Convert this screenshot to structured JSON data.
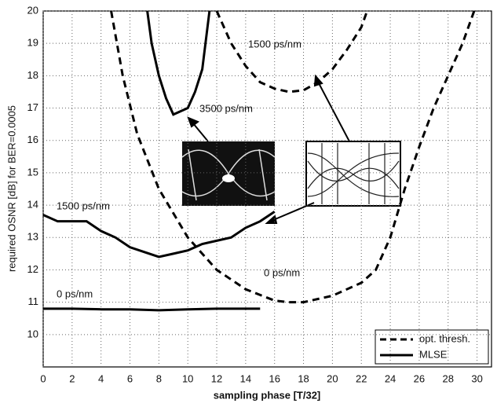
{
  "chart_data": {
    "type": "line",
    "xlabel": "sampling phase [T/32]",
    "ylabel": "required OSNR [dB] for BER=0.0005",
    "xlim": [
      0,
      31
    ],
    "ylim": [
      9,
      20
    ],
    "xticks": [
      0,
      2,
      4,
      6,
      8,
      10,
      12,
      14,
      16,
      18,
      20,
      22,
      24,
      26,
      28,
      30
    ],
    "yticks": [
      10,
      11,
      12,
      13,
      14,
      15,
      16,
      17,
      18,
      19,
      20
    ],
    "grid": true,
    "legend_position": "lower right",
    "legend": [
      {
        "label": "opt. thresh.",
        "dashed": true
      },
      {
        "label": "MLSE",
        "dashed": false
      }
    ],
    "series": [
      {
        "label": "0 ps/nm",
        "dashed": true,
        "color": "#000000",
        "x": [
          4.7,
          5.5,
          6.5,
          8,
          10,
          12,
          14,
          16,
          17,
          18,
          20,
          22,
          23,
          24,
          25,
          26,
          27,
          28,
          29,
          29.8
        ],
        "values": [
          20,
          18,
          16.2,
          14.5,
          13,
          12,
          11.4,
          11.05,
          11,
          11,
          11.2,
          11.6,
          12,
          13,
          14.5,
          15.8,
          17,
          18,
          19,
          20
        ]
      },
      {
        "label": "1500 ps/nm",
        "dashed": true,
        "color": "#000000",
        "x": [
          12,
          13,
          14,
          15,
          16,
          17,
          18,
          19,
          20,
          21,
          22,
          22.4
        ],
        "values": [
          20,
          19,
          18.3,
          17.8,
          17.6,
          17.5,
          17.55,
          17.8,
          18.2,
          18.8,
          19.5,
          20
        ]
      },
      {
        "label": "0 ps/nm",
        "dashed": false,
        "color": "#000000",
        "x": [
          0,
          2,
          4,
          6,
          8,
          10,
          12,
          14,
          15
        ],
        "values": [
          10.8,
          10.8,
          10.78,
          10.78,
          10.75,
          10.78,
          10.8,
          10.8,
          10.8
        ]
      },
      {
        "label": "1500 ps/nm",
        "dashed": false,
        "color": "#000000",
        "x": [
          0,
          1,
          3,
          4,
          5,
          6,
          7,
          8,
          9,
          10,
          11,
          12,
          13,
          14,
          15,
          16
        ],
        "values": [
          13.7,
          13.5,
          13.5,
          13.2,
          13,
          12.7,
          12.55,
          12.4,
          12.5,
          12.6,
          12.8,
          12.9,
          13,
          13.3,
          13.5,
          13.8
        ]
      },
      {
        "label": "3500 ps/nm",
        "dashed": false,
        "color": "#000000",
        "x": [
          7.2,
          7.5,
          8,
          8.5,
          9,
          10,
          10.5,
          11,
          11.5
        ],
        "values": [
          20,
          19,
          18,
          17.3,
          16.8,
          17,
          17.5,
          18.2,
          20
        ]
      }
    ]
  }
}
